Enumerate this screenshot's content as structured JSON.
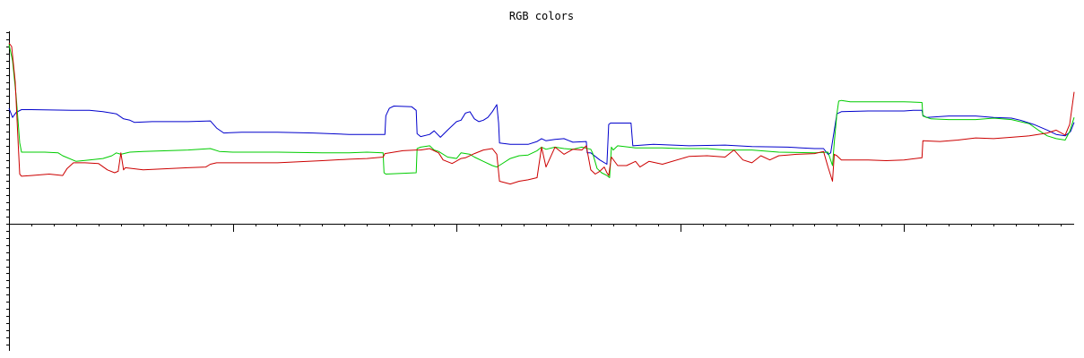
{
  "chart_data": {
    "type": "line",
    "title": "RGB colors",
    "xlabel": "",
    "ylabel": "",
    "x_range": [
      0,
      1190
    ],
    "y_range": [
      0,
      255
    ],
    "x_major_ticks": [
      0,
      250,
      500,
      750,
      1000
    ],
    "x_minor_step": 25,
    "y_minor_step": 10,
    "grid": false,
    "legend": "none",
    "series": [
      {
        "color": "#0000cc",
        "points": [
          [
            0,
            163
          ],
          [
            4,
            150
          ],
          [
            8,
            157
          ],
          [
            14,
            161
          ],
          [
            25,
            161
          ],
          [
            70,
            160
          ],
          [
            90,
            160
          ],
          [
            105,
            158
          ],
          [
            120,
            155
          ],
          [
            128,
            148
          ],
          [
            135,
            146
          ],
          [
            140,
            143
          ],
          [
            160,
            144
          ],
          [
            200,
            144
          ],
          [
            225,
            145
          ],
          [
            232,
            135
          ],
          [
            240,
            128
          ],
          [
            260,
            129
          ],
          [
            300,
            129
          ],
          [
            340,
            128
          ],
          [
            380,
            126
          ],
          [
            420,
            126
          ],
          [
            421,
            152
          ],
          [
            422,
            155
          ],
          [
            425,
            163
          ],
          [
            430,
            166
          ],
          [
            450,
            165
          ],
          [
            455,
            160
          ],
          [
            456,
            127
          ],
          [
            460,
            123
          ],
          [
            470,
            126
          ],
          [
            475,
            131
          ],
          [
            482,
            122
          ],
          [
            490,
            132
          ],
          [
            500,
            144
          ],
          [
            505,
            146
          ],
          [
            510,
            156
          ],
          [
            515,
            158
          ],
          [
            520,
            148
          ],
          [
            525,
            144
          ],
          [
            530,
            146
          ],
          [
            535,
            150
          ],
          [
            540,
            158
          ],
          [
            545,
            168
          ],
          [
            547,
            142
          ],
          [
            548,
            114
          ],
          [
            560,
            112
          ],
          [
            580,
            112
          ],
          [
            590,
            116
          ],
          [
            595,
            120
          ],
          [
            600,
            117
          ],
          [
            610,
            119
          ],
          [
            620,
            120
          ],
          [
            630,
            115
          ],
          [
            645,
            116
          ],
          [
            646,
            100
          ],
          [
            650,
            100
          ],
          [
            660,
            90
          ],
          [
            668,
            84
          ],
          [
            670,
            140
          ],
          [
            672,
            142
          ],
          [
            695,
            142
          ],
          [
            697,
            110
          ],
          [
            720,
            112
          ],
          [
            760,
            110
          ],
          [
            800,
            111
          ],
          [
            830,
            109
          ],
          [
            870,
            108
          ],
          [
            900,
            106
          ],
          [
            910,
            106
          ],
          [
            915,
            98
          ],
          [
            918,
            100
          ],
          [
            922,
            132
          ],
          [
            925,
            155
          ],
          [
            930,
            158
          ],
          [
            960,
            159
          ],
          [
            1000,
            159
          ],
          [
            1010,
            160
          ],
          [
            1020,
            160
          ],
          [
            1021,
            153
          ],
          [
            1025,
            150
          ],
          [
            1050,
            152
          ],
          [
            1080,
            152
          ],
          [
            1100,
            150
          ],
          [
            1120,
            149
          ],
          [
            1130,
            146
          ],
          [
            1145,
            140
          ],
          [
            1160,
            132
          ],
          [
            1170,
            126
          ],
          [
            1180,
            124
          ],
          [
            1186,
            130
          ],
          [
            1190,
            143
          ]
        ]
      },
      {
        "color": "#00cc00",
        "points": [
          [
            0,
            253
          ],
          [
            4,
            230
          ],
          [
            8,
            180
          ],
          [
            12,
            114
          ],
          [
            14,
            101
          ],
          [
            25,
            101
          ],
          [
            40,
            101
          ],
          [
            55,
            100
          ],
          [
            60,
            96
          ],
          [
            75,
            88
          ],
          [
            90,
            90
          ],
          [
            105,
            92
          ],
          [
            115,
            96
          ],
          [
            120,
            100
          ],
          [
            125,
            98
          ],
          [
            135,
            101
          ],
          [
            150,
            102
          ],
          [
            200,
            104
          ],
          [
            225,
            106
          ],
          [
            235,
            102
          ],
          [
            250,
            101
          ],
          [
            300,
            101
          ],
          [
            350,
            100
          ],
          [
            380,
            100
          ],
          [
            400,
            101
          ],
          [
            418,
            100
          ],
          [
            419,
            72
          ],
          [
            421,
            70
          ],
          [
            455,
            72
          ],
          [
            456,
            106
          ],
          [
            460,
            108
          ],
          [
            470,
            110
          ],
          [
            475,
            104
          ],
          [
            480,
            102
          ],
          [
            490,
            94
          ],
          [
            500,
            92
          ],
          [
            505,
            100
          ],
          [
            515,
            98
          ],
          [
            520,
            94
          ],
          [
            530,
            88
          ],
          [
            540,
            82
          ],
          [
            545,
            80
          ],
          [
            550,
            84
          ],
          [
            560,
            92
          ],
          [
            570,
            96
          ],
          [
            580,
            97
          ],
          [
            590,
            103
          ],
          [
            595,
            108
          ],
          [
            600,
            105
          ],
          [
            610,
            108
          ],
          [
            620,
            106
          ],
          [
            630,
            105
          ],
          [
            640,
            108
          ],
          [
            650,
            105
          ],
          [
            652,
            100
          ],
          [
            657,
            78
          ],
          [
            662,
            72
          ],
          [
            668,
            68
          ],
          [
            671,
            65
          ],
          [
            673,
            108
          ],
          [
            675,
            104
          ],
          [
            680,
            110
          ],
          [
            700,
            107
          ],
          [
            730,
            107
          ],
          [
            750,
            106
          ],
          [
            780,
            106
          ],
          [
            800,
            104
          ],
          [
            830,
            104
          ],
          [
            860,
            101
          ],
          [
            900,
            100
          ],
          [
            915,
            101
          ],
          [
            920,
            82
          ],
          [
            922,
            115
          ],
          [
            925,
            155
          ],
          [
            927,
            173
          ],
          [
            930,
            174
          ],
          [
            940,
            172
          ],
          [
            980,
            172
          ],
          [
            1000,
            172
          ],
          [
            1020,
            171
          ],
          [
            1021,
            152
          ],
          [
            1030,
            148
          ],
          [
            1050,
            147
          ],
          [
            1080,
            147
          ],
          [
            1100,
            149
          ],
          [
            1120,
            147
          ],
          [
            1140,
            141
          ],
          [
            1150,
            132
          ],
          [
            1160,
            124
          ],
          [
            1170,
            120
          ],
          [
            1180,
            118
          ],
          [
            1185,
            130
          ],
          [
            1190,
            150
          ]
        ]
      },
      {
        "color": "#cc0000",
        "points": [
          [
            0,
            255
          ],
          [
            3,
            250
          ],
          [
            7,
            200
          ],
          [
            10,
            120
          ],
          [
            12,
            70
          ],
          [
            14,
            67
          ],
          [
            25,
            68
          ],
          [
            45,
            70
          ],
          [
            60,
            68
          ],
          [
            65,
            78
          ],
          [
            72,
            86
          ],
          [
            85,
            86
          ],
          [
            100,
            85
          ],
          [
            110,
            76
          ],
          [
            118,
            72
          ],
          [
            122,
            74
          ],
          [
            125,
            100
          ],
          [
            128,
            76
          ],
          [
            130,
            79
          ],
          [
            150,
            76
          ],
          [
            200,
            79
          ],
          [
            220,
            80
          ],
          [
            225,
            84
          ],
          [
            232,
            86
          ],
          [
            250,
            86
          ],
          [
            300,
            86
          ],
          [
            350,
            89
          ],
          [
            380,
            91
          ],
          [
            400,
            92
          ],
          [
            418,
            94
          ],
          [
            420,
            99
          ],
          [
            440,
            103
          ],
          [
            455,
            104
          ],
          [
            460,
            104
          ],
          [
            470,
            106
          ],
          [
            480,
            100
          ],
          [
            485,
            90
          ],
          [
            495,
            85
          ],
          [
            505,
            92
          ],
          [
            510,
            93
          ],
          [
            520,
            99
          ],
          [
            530,
            104
          ],
          [
            540,
            106
          ],
          [
            545,
            98
          ],
          [
            548,
            60
          ],
          [
            560,
            56
          ],
          [
            570,
            60
          ],
          [
            580,
            62
          ],
          [
            590,
            65
          ],
          [
            595,
            108
          ],
          [
            600,
            80
          ],
          [
            610,
            108
          ],
          [
            620,
            98
          ],
          [
            630,
            105
          ],
          [
            640,
            104
          ],
          [
            645,
            110
          ],
          [
            650,
            76
          ],
          [
            655,
            70
          ],
          [
            660,
            74
          ],
          [
            665,
            80
          ],
          [
            668,
            72
          ],
          [
            670,
            68
          ],
          [
            673,
            94
          ],
          [
            680,
            82
          ],
          [
            690,
            82
          ],
          [
            700,
            88
          ],
          [
            705,
            80
          ],
          [
            715,
            88
          ],
          [
            730,
            84
          ],
          [
            760,
            95
          ],
          [
            780,
            96
          ],
          [
            800,
            94
          ],
          [
            810,
            104
          ],
          [
            820,
            90
          ],
          [
            830,
            86
          ],
          [
            840,
            96
          ],
          [
            850,
            90
          ],
          [
            860,
            96
          ],
          [
            870,
            97
          ],
          [
            880,
            98
          ],
          [
            900,
            99
          ],
          [
            910,
            102
          ],
          [
            915,
            80
          ],
          [
            920,
            60
          ],
          [
            922,
            98
          ],
          [
            925,
            96
          ],
          [
            930,
            90
          ],
          [
            960,
            90
          ],
          [
            980,
            89
          ],
          [
            1000,
            90
          ],
          [
            1020,
            93
          ],
          [
            1021,
            117
          ],
          [
            1040,
            116
          ],
          [
            1060,
            118
          ],
          [
            1080,
            121
          ],
          [
            1100,
            120
          ],
          [
            1120,
            122
          ],
          [
            1140,
            124
          ],
          [
            1160,
            128
          ],
          [
            1170,
            132
          ],
          [
            1180,
            125
          ],
          [
            1185,
            140
          ],
          [
            1190,
            186
          ]
        ]
      }
    ]
  }
}
